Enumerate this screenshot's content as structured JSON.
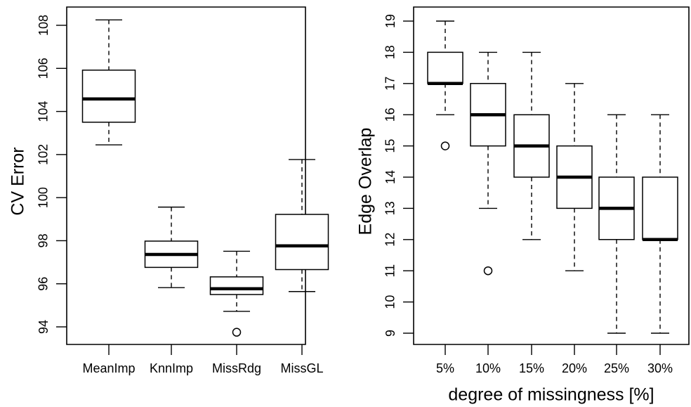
{
  "chart_data": [
    {
      "type": "boxplot",
      "ylabel": "CV Error",
      "xlabel": "",
      "ylim": [
        93.0,
        108.8
      ],
      "yticks": [
        94,
        96,
        98,
        100,
        102,
        104,
        106,
        108
      ],
      "categories": [
        "MeanImp",
        "KnnImp",
        "MissRdg",
        "MissGL"
      ],
      "boxes": [
        {
          "name": "MeanImp",
          "whisker_low": 102.45,
          "q1": 103.5,
          "median": 104.58,
          "q3": 105.92,
          "whisker_high": 108.25,
          "outliers": []
        },
        {
          "name": "KnnImp",
          "whisker_low": 95.82,
          "q1": 96.76,
          "median": 97.36,
          "q3": 97.98,
          "whisker_high": 99.56,
          "outliers": []
        },
        {
          "name": "MissRdg",
          "whisker_low": 94.72,
          "q1": 95.5,
          "median": 95.77,
          "q3": 96.32,
          "whisker_high": 97.51,
          "outliers": [
            93.75
          ]
        },
        {
          "name": "MissGL",
          "whisker_low": 95.64,
          "q1": 96.66,
          "median": 97.76,
          "q3": 99.22,
          "whisker_high": 101.77,
          "outliers": []
        }
      ]
    },
    {
      "type": "boxplot",
      "ylabel": "Edge Overlap",
      "xlabel": "degree of missingness [%]",
      "ylim": [
        8.6,
        19.3
      ],
      "yticks": [
        9,
        10,
        11,
        12,
        13,
        14,
        15,
        16,
        17,
        18,
        19
      ],
      "categories": [
        "5%",
        "10%",
        "15%",
        "20%",
        "25%",
        "30%"
      ],
      "boxes": [
        {
          "name": "5%",
          "whisker_low": 16,
          "q1": 17,
          "median": 17,
          "q3": 18,
          "whisker_high": 19,
          "outliers": [
            15
          ]
        },
        {
          "name": "10%",
          "whisker_low": 13,
          "q1": 15,
          "median": 16,
          "q3": 17,
          "whisker_high": 18,
          "outliers": [
            11
          ]
        },
        {
          "name": "15%",
          "whisker_low": 12,
          "q1": 14,
          "median": 15,
          "q3": 16,
          "whisker_high": 18,
          "outliers": []
        },
        {
          "name": "20%",
          "whisker_low": 11,
          "q1": 13,
          "median": 14,
          "q3": 15,
          "whisker_high": 17,
          "outliers": []
        },
        {
          "name": "25%",
          "whisker_low": 9,
          "q1": 12,
          "median": 13,
          "q3": 14,
          "whisker_high": 16,
          "outliers": []
        },
        {
          "name": "30%",
          "whisker_low": 9,
          "q1": 12,
          "median": 12,
          "q3": 14,
          "whisker_high": 16,
          "outliers": []
        }
      ]
    }
  ]
}
